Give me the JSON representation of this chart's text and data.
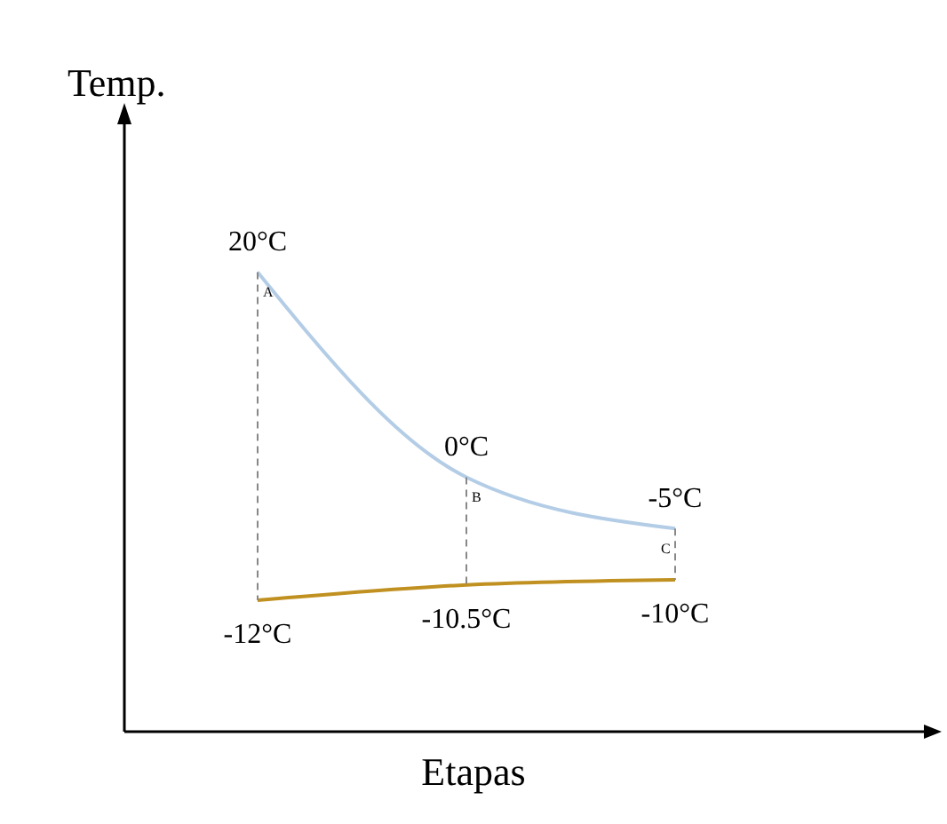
{
  "chart_data": {
    "type": "line",
    "xlabel": "Etapas",
    "ylabel": "Temp.",
    "categories": [
      null,
      null,
      null
    ],
    "tick_labels": false,
    "series": [
      {
        "color": "#b4cde6",
        "values": [
          20,
          0,
          -5
        ],
        "value_labels": [
          "20°C",
          "0°C",
          "-5°C"
        ]
      },
      {
        "color": "#c09020",
        "values": [
          -12,
          -10.5,
          -10
        ],
        "value_labels": [
          "-12°C",
          "-10.5°C",
          "-10°C"
        ]
      }
    ],
    "annotations": [
      "A",
      "B",
      "C"
    ]
  }
}
